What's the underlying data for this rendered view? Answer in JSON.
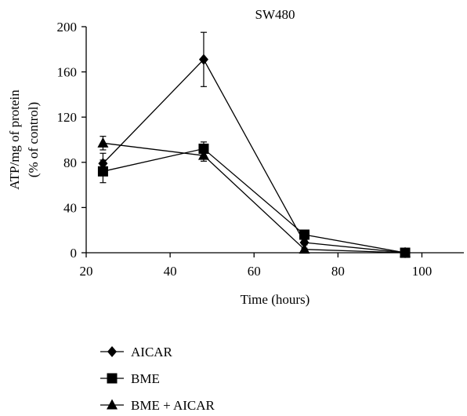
{
  "chart_data": {
    "type": "line",
    "title": "SW480",
    "xlabel": "Time (hours)",
    "ylabel_lines": [
      "ATP/mg of protein",
      "(% of control)"
    ],
    "xlim": [
      20,
      110
    ],
    "ylim": [
      0,
      200
    ],
    "x_ticks": [
      20,
      40,
      60,
      80,
      100
    ],
    "y_ticks": [
      0,
      40,
      80,
      120,
      160,
      200
    ],
    "grid": false,
    "legend_position": "bottom-left",
    "series": [
      {
        "name": "AICAR",
        "marker": "diamond",
        "color": "#000000",
        "x": [
          24,
          48,
          72,
          96
        ],
        "y": [
          79,
          171,
          9,
          0
        ],
        "err": [
          9,
          24,
          2,
          1
        ]
      },
      {
        "name": "BME",
        "marker": "square",
        "color": "#000000",
        "x": [
          24,
          48,
          72,
          96
        ],
        "y": [
          72,
          92,
          16,
          0
        ],
        "err": [
          10,
          6,
          2,
          1
        ]
      },
      {
        "name": "BME + AICAR",
        "marker": "triangle",
        "color": "#000000",
        "x": [
          24,
          48,
          72,
          96
        ],
        "y": [
          97,
          86,
          3,
          0
        ],
        "err": [
          6,
          5,
          1,
          1
        ]
      }
    ]
  }
}
